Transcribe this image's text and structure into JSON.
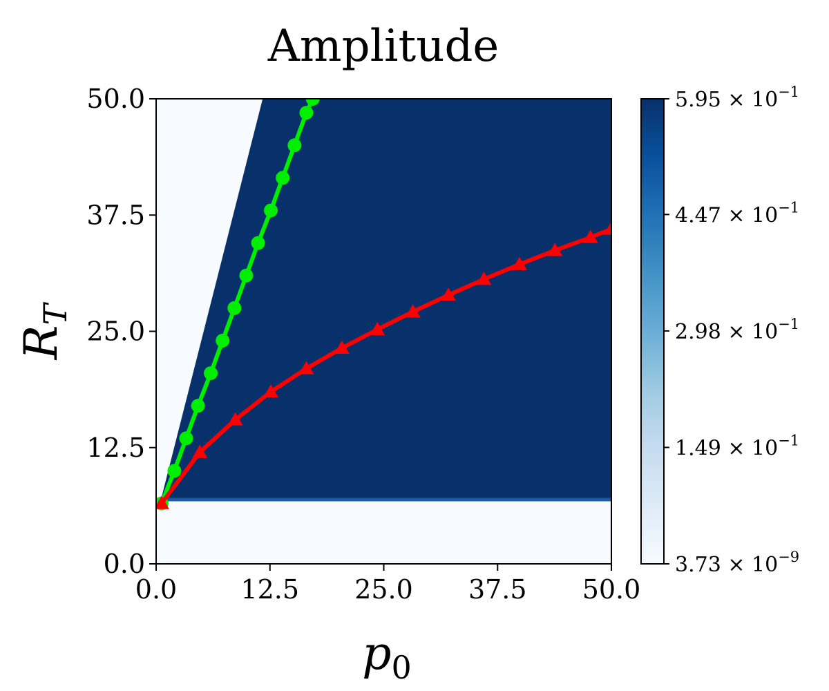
{
  "chart_data": {
    "type": "heatmap",
    "title": "Amplitude",
    "xlabel": {
      "main": "p",
      "sub": "0"
    },
    "ylabel": {
      "main": "R",
      "sub": "T"
    },
    "xlim": [
      0,
      50
    ],
    "ylim": [
      0,
      50
    ],
    "xticks": [
      0,
      12.5,
      25,
      37.5,
      50
    ],
    "yticks": [
      0,
      12.5,
      25,
      37.5,
      50
    ],
    "xtick_labels": [
      "0.0",
      "12.5",
      "25.0",
      "37.5",
      "50.0"
    ],
    "ytick_labels": [
      "0.0",
      "12.5",
      "25.0",
      "37.5",
      "50.0"
    ],
    "colormap": "Blues",
    "colorbar": {
      "min": 3.73e-09,
      "max": 0.595,
      "ticks": [
        {
          "value": 0.595,
          "mantissa": "5.95",
          "exponent": "−1"
        },
        {
          "value": 0.447,
          "mantissa": "4.47",
          "exponent": "−1"
        },
        {
          "value": 0.298,
          "mantissa": "2.98",
          "exponent": "−1"
        },
        {
          "value": 0.149,
          "mantissa": "1.49",
          "exponent": "−1"
        },
        {
          "value": 3.73e-09,
          "mantissa": "3.73",
          "exponent": "−9"
        }
      ]
    },
    "field": {
      "low_value_color": "#f7fbff",
      "high_value_color": "#08306b",
      "threshold_R": 6.8,
      "boundary_line": [
        [
          0.5,
          6.8
        ],
        [
          11.7,
          50
        ]
      ]
    },
    "series": [
      {
        "color": "#00ee00",
        "marker": "circle",
        "x": [
          0.6,
          2.0,
          3.3,
          4.6,
          6.0,
          7.3,
          8.6,
          9.9,
          11.2,
          12.6,
          13.9,
          15.2,
          16.5,
          17.2
        ],
        "y": [
          6.5,
          10.0,
          13.5,
          17.0,
          20.5,
          24.0,
          27.5,
          31.0,
          34.5,
          38.0,
          41.5,
          45.0,
          48.5,
          50.0
        ]
      },
      {
        "color": "#ff0000",
        "marker": "triangle",
        "x": [
          0.6,
          4.8,
          8.7,
          12.6,
          16.5,
          20.4,
          24.3,
          28.2,
          32.1,
          36.0,
          39.9,
          43.8,
          47.7,
          50.0
        ],
        "y": [
          6.5,
          12.0,
          15.5,
          18.5,
          21.0,
          23.2,
          25.2,
          27.1,
          28.9,
          30.6,
          32.2,
          33.7,
          35.1,
          36.0
        ]
      }
    ]
  }
}
